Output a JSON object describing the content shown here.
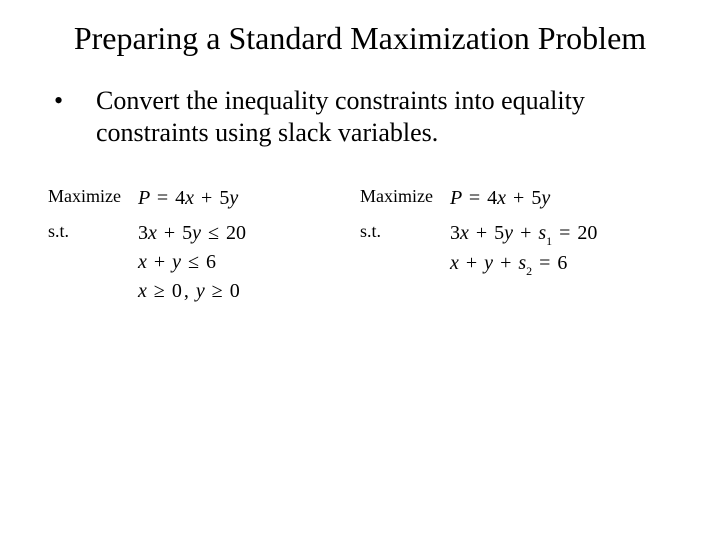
{
  "title": "Preparing a Standard Maximization Problem",
  "bullet": {
    "mark": "•",
    "text": "Convert the inequality constraints into equality constraints using slack variables."
  },
  "left": {
    "maximize_label": "Maximize",
    "st_label": "s.t.",
    "objective": "P = 4x + 5y",
    "c1": "3x + 5y ≤ 20",
    "c2": "x + y ≤ 6",
    "c3": "x ≥ 0, y ≥ 0"
  },
  "right": {
    "maximize_label": "Maximize",
    "st_label": "s.t.",
    "objective": "P = 4x + 5y",
    "c1": "3x + 5y + s₁ = 20",
    "c2": "x + y + s₂ = 6"
  },
  "style": {
    "background_color": "#ffffff",
    "text_color": "#000000",
    "title_fontsize": 32,
    "body_fontsize": 26,
    "label_fontsize": 18,
    "math_fontsize": 20,
    "font_family": "Times New Roman"
  }
}
